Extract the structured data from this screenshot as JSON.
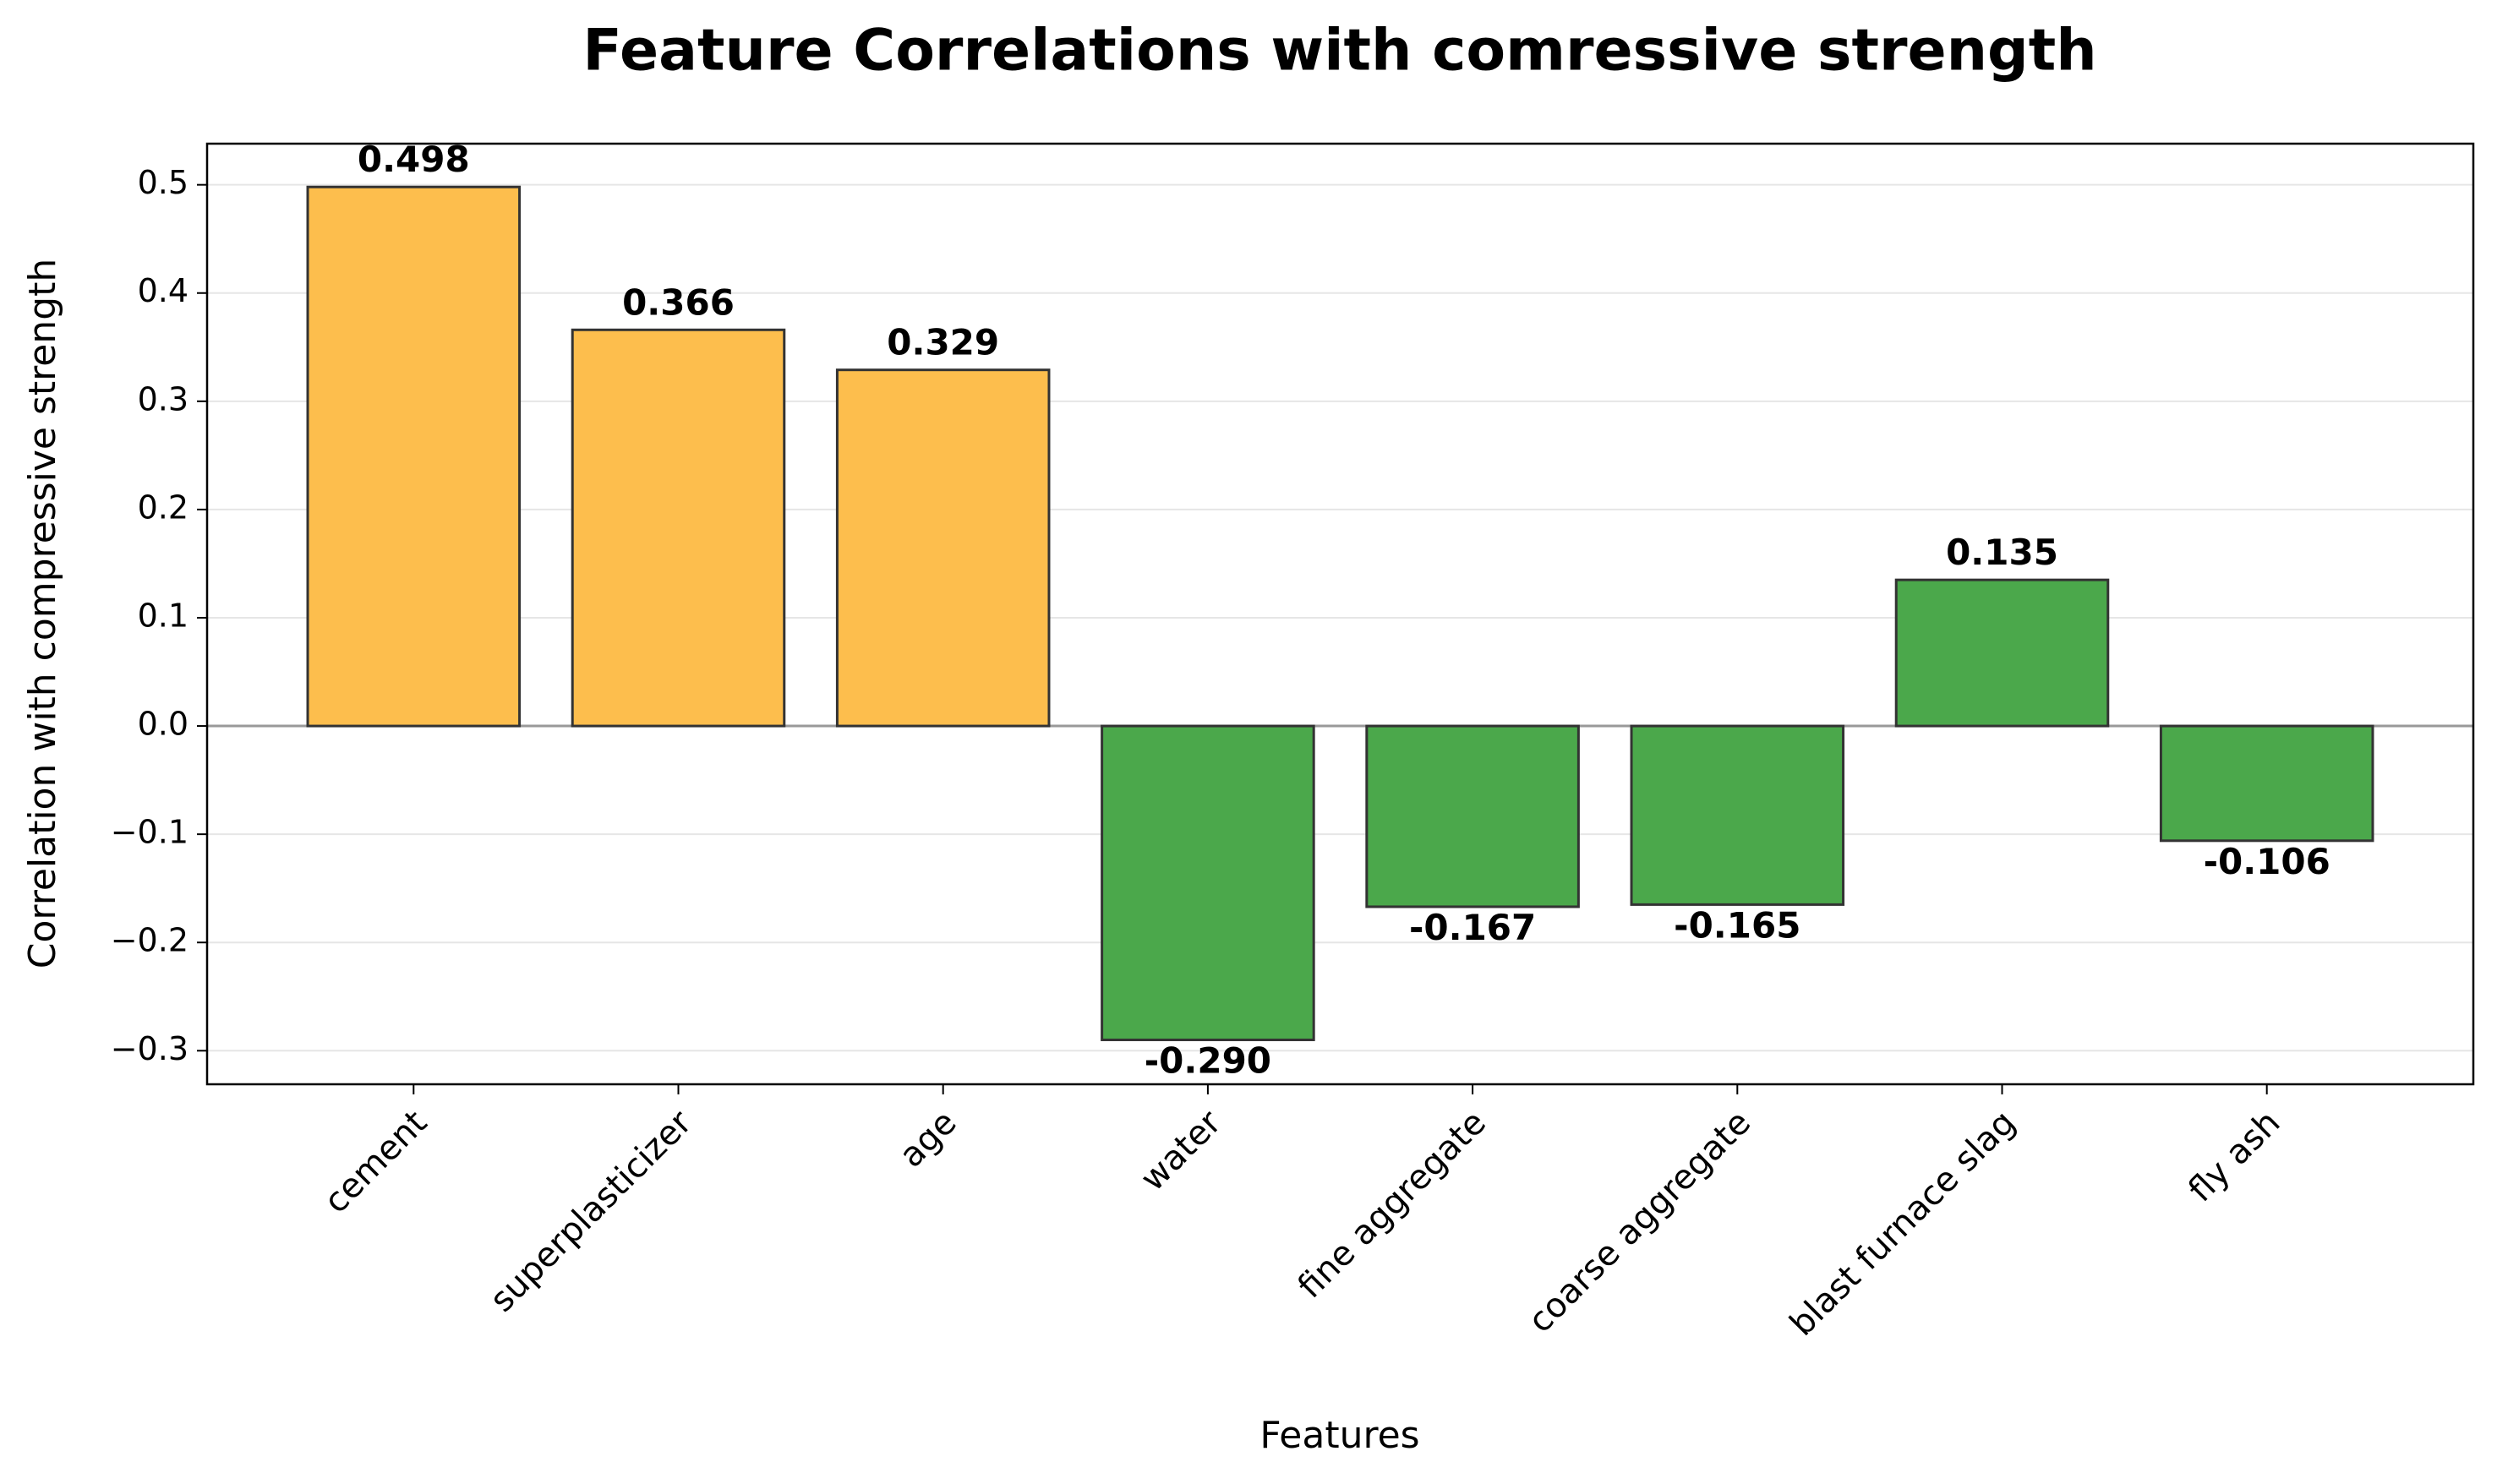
{
  "chart_data": {
    "type": "bar",
    "title": "Feature Correlations with comressive strength",
    "x_label": "Features",
    "y_label": "Correlation with compressive strength",
    "categories": [
      "cement",
      "superplasticizer",
      "age",
      "water",
      "fine aggregate",
      "coarse aggregate",
      "blast furnace slag",
      "fly ash"
    ],
    "values": [
      0.498,
      0.366,
      0.329,
      -0.29,
      -0.167,
      -0.165,
      0.135,
      -0.106
    ],
    "value_labels": [
      "0.498",
      "0.366",
      "0.329",
      "-0.290",
      "-0.167",
      "-0.165",
      "0.135",
      "-0.106"
    ],
    "colors": [
      "#fdbe4d",
      "#fdbe4d",
      "#fdbe4d",
      "#4ba84b",
      "#4ba84b",
      "#4ba84b",
      "#4ba84b",
      "#4ba84b"
    ],
    "ylim": [
      -0.331,
      0.538
    ],
    "yticks": [
      {
        "value": -0.3,
        "label": "−0.3"
      },
      {
        "value": -0.2,
        "label": "−0.2"
      },
      {
        "value": -0.1,
        "label": "−0.1"
      },
      {
        "value": 0.0,
        "label": "0.0"
      },
      0.1,
      0.2,
      0.3,
      0.4,
      0.5
    ],
    "grid": true
  }
}
